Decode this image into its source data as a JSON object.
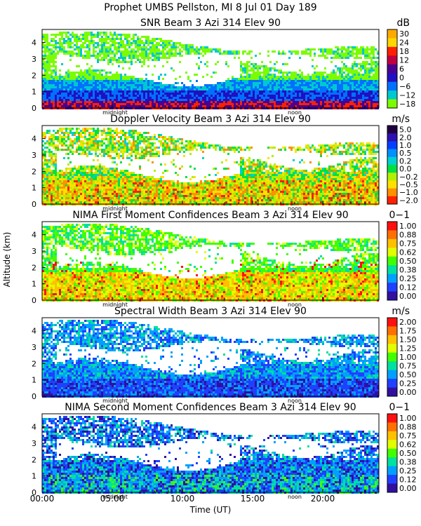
{
  "header": {
    "title": "Prophet  UMBS Pellston, MI    8 Jul 01 Day 189"
  },
  "shared": {
    "ylabel": "Altitude (km)",
    "xlabel": "Time (UT)",
    "x_ticks": [
      "00:00",
      "05:00",
      "10:00",
      "15:00",
      "20:00"
    ],
    "x_tick_hours": [
      0,
      5,
      10,
      15,
      20
    ],
    "xlim_hours": [
      0,
      24
    ],
    "y_ticks": [
      "0",
      "1",
      "2",
      "3",
      "4"
    ],
    "ylim_km": [
      0,
      4.8
    ],
    "marker_midnight": "midnight",
    "marker_noon": "noon",
    "marker_midnight_hour": 5.2,
    "marker_noon_hour": 18
  },
  "chart_data": [
    {
      "type": "heatmap",
      "title": "SNR Beam 3 Azi 314 Elev 90",
      "units": "dB",
      "colorbar_labels": [
        "30",
        "24",
        "18",
        "12",
        "6",
        "0",
        "−6",
        "−12",
        "−18"
      ],
      "colorbar_colors": [
        "#ffaa00",
        "#ffd700",
        "#ff2000",
        "#c00040",
        "#4a0090",
        "#2010c0",
        "#0070ff",
        "#00c8d0",
        "#7cfc00"
      ],
      "mode": "snr"
    },
    {
      "type": "heatmap",
      "title": "Doppler Velocity Beam 3 Azi 314 Elev 90",
      "units": "m/s",
      "colorbar_labels": [
        "5.0",
        "2.0",
        "1.0",
        "0.5",
        "0.2",
        "0.0",
        "−0.2",
        "−0.5",
        "−1.0",
        "−2.0"
      ],
      "colorbar_colors": [
        "#200040",
        "#3010b0",
        "#0040ff",
        "#0090ff",
        "#00d0d0",
        "#00e040",
        "#b0f000",
        "#ffe000",
        "#ff9000",
        "#ff2000"
      ],
      "mode": "velocity"
    },
    {
      "type": "heatmap",
      "title": "NIMA First Moment Confidences Beam 3 Azi 314 Elev 90",
      "units": "0−1",
      "colorbar_labels": [
        "1.00",
        "0.88",
        "0.75",
        "0.62",
        "0.50",
        "0.38",
        "0.25",
        "0.12",
        "0.00"
      ],
      "colorbar_colors": [
        "#ff1010",
        "#ff7000",
        "#ffc000",
        "#e0ff00",
        "#40ff00",
        "#00e0a0",
        "#00a0ff",
        "#2040ff",
        "#3010a0"
      ],
      "mode": "confidence1"
    },
    {
      "type": "heatmap",
      "title": "Spectral Width Beam 3 Azi 314 Elev 90",
      "units": "m/s",
      "colorbar_labels": [
        "2.00",
        "1.75",
        "1.50",
        "1.25",
        "1.00",
        "0.75",
        "0.50",
        "0.25",
        "0.00"
      ],
      "colorbar_colors": [
        "#ff1010",
        "#ff7000",
        "#ffc000",
        "#e0ff00",
        "#40ff00",
        "#00e0a0",
        "#00a0ff",
        "#2040ff",
        "#3010a0"
      ],
      "mode": "width"
    },
    {
      "type": "heatmap",
      "title": "NIMA Second Moment Confidences Beam 3 Azi 314 Elev 90",
      "units": "0−1",
      "colorbar_labels": [
        "1.00",
        "0.88",
        "0.75",
        "0.62",
        "0.50",
        "0.38",
        "0.25",
        "0.12",
        "0.00"
      ],
      "colorbar_colors": [
        "#ff1010",
        "#ff7000",
        "#ffc000",
        "#e0ff00",
        "#40ff00",
        "#00e0a0",
        "#00a0ff",
        "#2040ff",
        "#3010a0"
      ],
      "mode": "confidence2"
    }
  ]
}
